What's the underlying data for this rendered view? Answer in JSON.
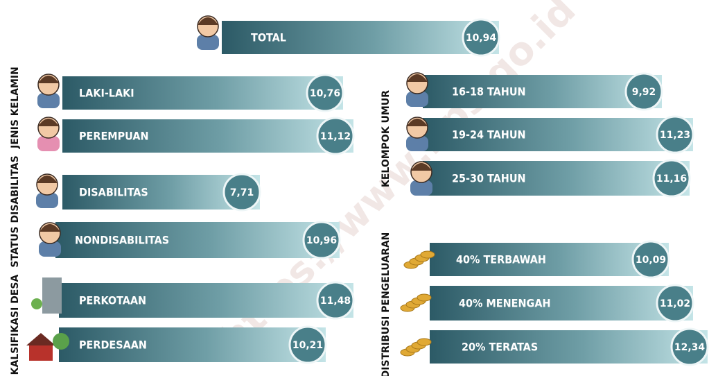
{
  "total": {
    "label": "TOTAL",
    "value": "10,94"
  },
  "groups": [
    {
      "title": "JENIS KELAMIN",
      "items": [
        {
          "label": "LAKI-LAKI",
          "value": "10,76"
        },
        {
          "label": "PEREMPUAN",
          "value": "11,12"
        }
      ]
    },
    {
      "title": "STATUS DISABILITAS",
      "items": [
        {
          "label": "DISABILITAS",
          "value": "7,71"
        },
        {
          "label": "NONDISABILITAS",
          "value": "10,96"
        }
      ]
    },
    {
      "title": "KALSIFIKASI DESA",
      "items": [
        {
          "label": "PERKOTAAN",
          "value": "11,48"
        },
        {
          "label": "PERDESAAN",
          "value": "10,21"
        }
      ]
    },
    {
      "title": "KELOMPOK UMUR",
      "items": [
        {
          "label": "16-18 TAHUN",
          "value": "9,92"
        },
        {
          "label": "19-24 TAHUN",
          "value": "11,23"
        },
        {
          "label": "25-30 TAHUN",
          "value": "11,16"
        }
      ]
    },
    {
      "title": "DISTRIBUSI PENGELUARAN",
      "items": [
        {
          "label": "40% TERBAWAH",
          "value": "10,09"
        },
        {
          "label": "40% MENENGAH",
          "value": "11,02"
        },
        {
          "label": "20% TERATAS",
          "value": "12,34"
        }
      ]
    }
  ],
  "watermark": "https://www.bps.go.id"
}
